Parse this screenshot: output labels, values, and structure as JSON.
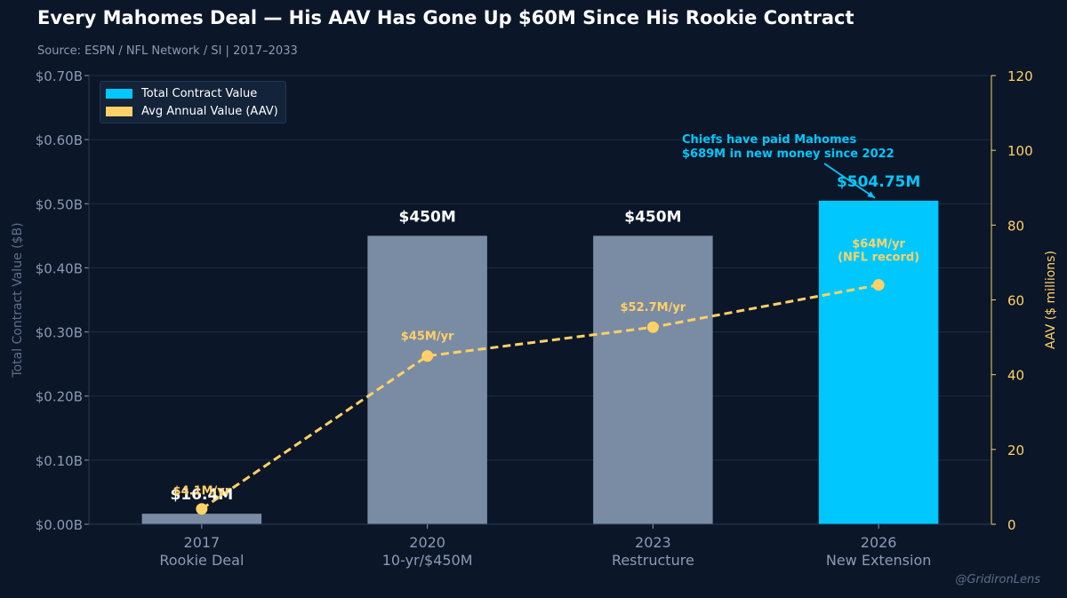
{
  "header": {
    "title": "Every Mahomes Deal — His AAV Has Gone Up $60M Since His Rookie Contract",
    "subtitle": "Source: ESPN / NFL Network / SI  |  2017–2033"
  },
  "legend": {
    "items": [
      {
        "label": "Total Contract Value",
        "color": "#00c8ff"
      },
      {
        "label": "Avg Annual Value (AAV)",
        "color": "#ffd166"
      }
    ]
  },
  "watermark": "@GridironLens",
  "colors": {
    "background": "#0b1628",
    "bar_default": "#7a8ba4",
    "bar_highlight": "#00c8ff",
    "aav_line": "#ffd166",
    "grid": "#1c2d45",
    "left_axis_text": "#8b9ab5",
    "right_axis_text": "#ffd166"
  },
  "chart_data": {
    "type": "bar",
    "categories": [
      "2017\nRookie Deal",
      "2020\n10-yr/$450M",
      "2023\nRestructure",
      "2026\nNew Extension"
    ],
    "series": [
      {
        "name": "Total Contract Value",
        "axis": "left",
        "values": [
          0.0164,
          0.45,
          0.45,
          0.50475
        ],
        "data_labels": [
          "$16.4M",
          "$450M",
          "$450M",
          "$504.75M"
        ],
        "colors": [
          "#7a8ba4",
          "#7a8ba4",
          "#7a8ba4",
          "#00c8ff"
        ]
      },
      {
        "name": "Avg Annual Value (AAV)",
        "axis": "right",
        "type": "line",
        "style": "dashed",
        "values": [
          4.1,
          45,
          52.7,
          64
        ],
        "data_labels": [
          "$4.1M/yr",
          "$45M/yr",
          "$52.7M/yr",
          "$64M/yr\n(NFL record)"
        ]
      }
    ],
    "ylabel": "Total Contract Value ($B)",
    "ylim": [
      0,
      0.7
    ],
    "yticks": [
      "$0.00B",
      "$0.10B",
      "$0.20B",
      "$0.30B",
      "$0.40B",
      "$0.50B",
      "$0.60B",
      "$0.70B"
    ],
    "y2label": "AAV ($ millions)",
    "y2lim": [
      0,
      120
    ],
    "y2ticks": [
      "0",
      "20",
      "40",
      "60",
      "80",
      "100",
      "120"
    ],
    "grid": true,
    "legend_position": "top-left",
    "annotation": {
      "text": "Chiefs have paid Mahomes\n$689M in new money since 2022",
      "target_category": 3
    }
  }
}
